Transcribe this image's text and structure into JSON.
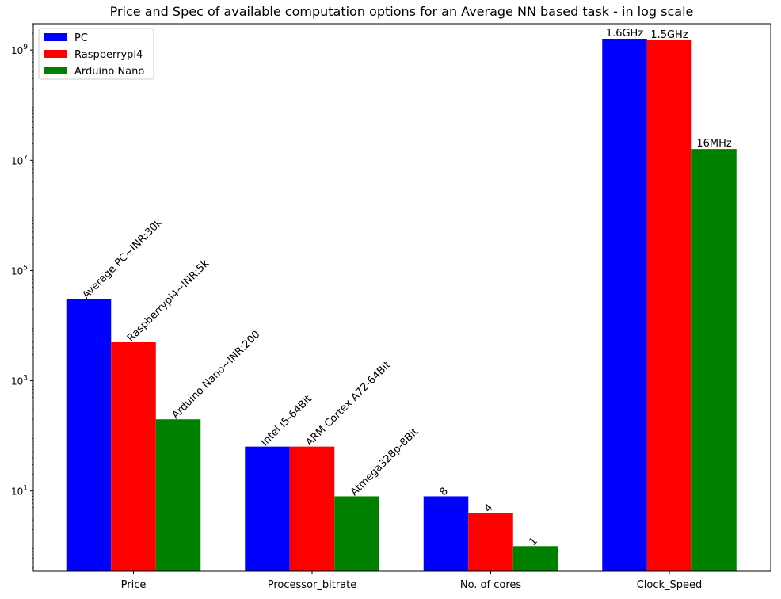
{
  "chart_data": {
    "type": "bar",
    "title": "Price and Spec of available computation options for an Average NN based task - in log scale",
    "xlabel": "",
    "ylabel": "",
    "yscale": "log",
    "ylim": [
      0.35,
      3000000000
    ],
    "grid": false,
    "legend_position": "top-left",
    "categories": [
      "Price",
      "Processor_bitrate",
      "No. of cores",
      "Clock_Speed"
    ],
    "y_ticks": [
      {
        "value": 10,
        "label": "10",
        "exp": "1"
      },
      {
        "value": 1000,
        "label": "10",
        "exp": "3"
      },
      {
        "value": 100000,
        "label": "10",
        "exp": "5"
      },
      {
        "value": 10000000,
        "label": "10",
        "exp": "7"
      },
      {
        "value": 1000000000,
        "label": "10",
        "exp": "9"
      }
    ],
    "series": [
      {
        "name": "PC",
        "color": "#0000ff",
        "values": [
          30000,
          64,
          8,
          1600000000
        ],
        "bar_labels": [
          "Average PC~INR:30k",
          "Intel I5-64Bit",
          "8",
          "1.6GHz"
        ]
      },
      {
        "name": "Raspberrypi4",
        "color": "#ff0000",
        "values": [
          5000,
          64,
          4,
          1500000000
        ],
        "bar_labels": [
          "Raspberrypi4~INR:5k",
          "ARM Cortex A72-64Bit",
          "4",
          "1.5GHz"
        ]
      },
      {
        "name": "Arduino Nano",
        "color": "#008000",
        "values": [
          200,
          8,
          1,
          16000000
        ],
        "bar_labels": [
          "Arduino Nano~INR:200",
          "Atmega328p-8Bit",
          "1",
          "16MHz"
        ]
      }
    ]
  }
}
